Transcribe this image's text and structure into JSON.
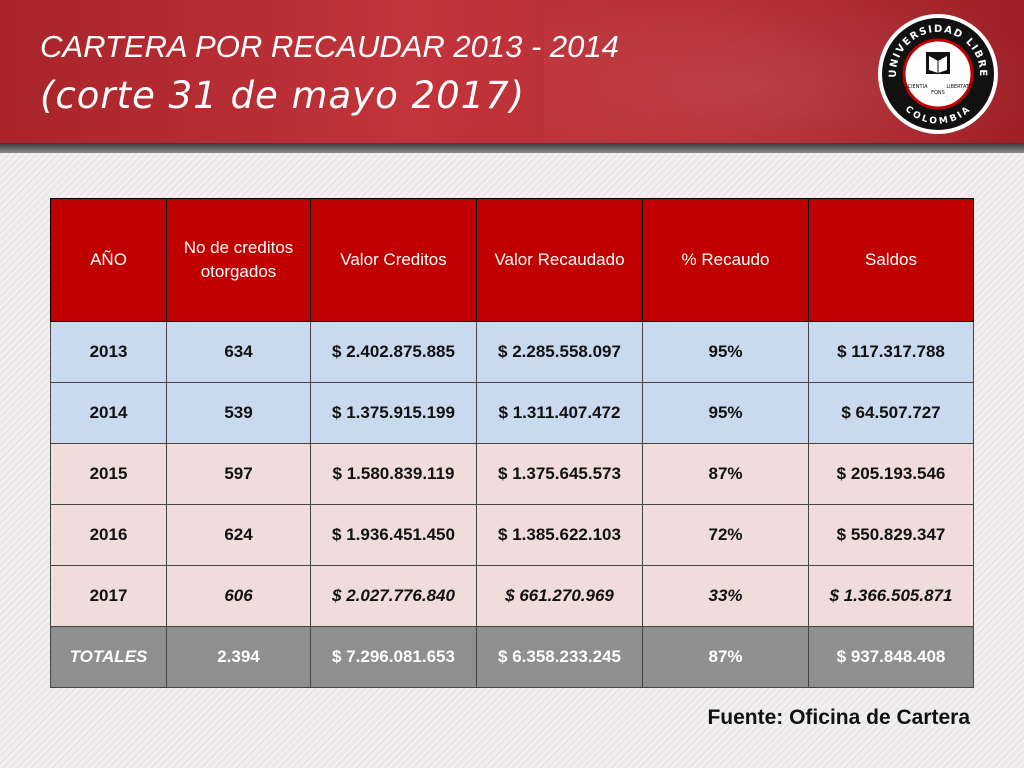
{
  "slide": {
    "title_line1": "CARTERA POR RECAUDAR 2013 - 2014",
    "title_line2": "(corte 31 de mayo 2017)",
    "source": "Fuente: Oficina de Cartera"
  },
  "logo": {
    "top_text": "UNIVERSIDAD LIBRE",
    "bottom_text": "COLOMBIA",
    "left": "SCIENTIA",
    "center": "FONS",
    "right": "LIBERTATIS"
  },
  "table": {
    "headers": [
      "AÑO",
      "No de creditos otorgados",
      "Valor Creditos",
      "Valor Recaudado",
      "% Recaudo",
      "Saldos"
    ],
    "rows": [
      [
        "2013",
        "634",
        "$ 2.402.875.885",
        "$ 2.285.558.097",
        "95%",
        "$ 117.317.788"
      ],
      [
        "2014",
        "539",
        "$ 1.375.915.199",
        "$ 1.311.407.472",
        "95%",
        "$ 64.507.727"
      ],
      [
        "2015",
        "597",
        "$ 1.580.839.119",
        "$ 1.375.645.573",
        "87%",
        "$ 205.193.546"
      ],
      [
        "2016",
        "624",
        "$ 1.936.451.450",
        "$ 1.385.622.103",
        "72%",
        "$ 550.829.347"
      ],
      [
        "2017",
        "606",
        "$ 2.027.776.840",
        "$ 661.270.969",
        "33%",
        "$ 1.366.505.871"
      ]
    ],
    "totals": [
      "TOTALES",
      "2.394",
      "$ 7.296.081.653",
      "$ 6.358.233.245",
      "87%",
      "$ 937.848.408"
    ]
  },
  "colors": {
    "header_red": "#b8262d",
    "table_header": "#c00000",
    "row_blue": "#c9d9ee",
    "row_pink": "#f1dcdc",
    "total_gray": "#8f8f8f"
  }
}
